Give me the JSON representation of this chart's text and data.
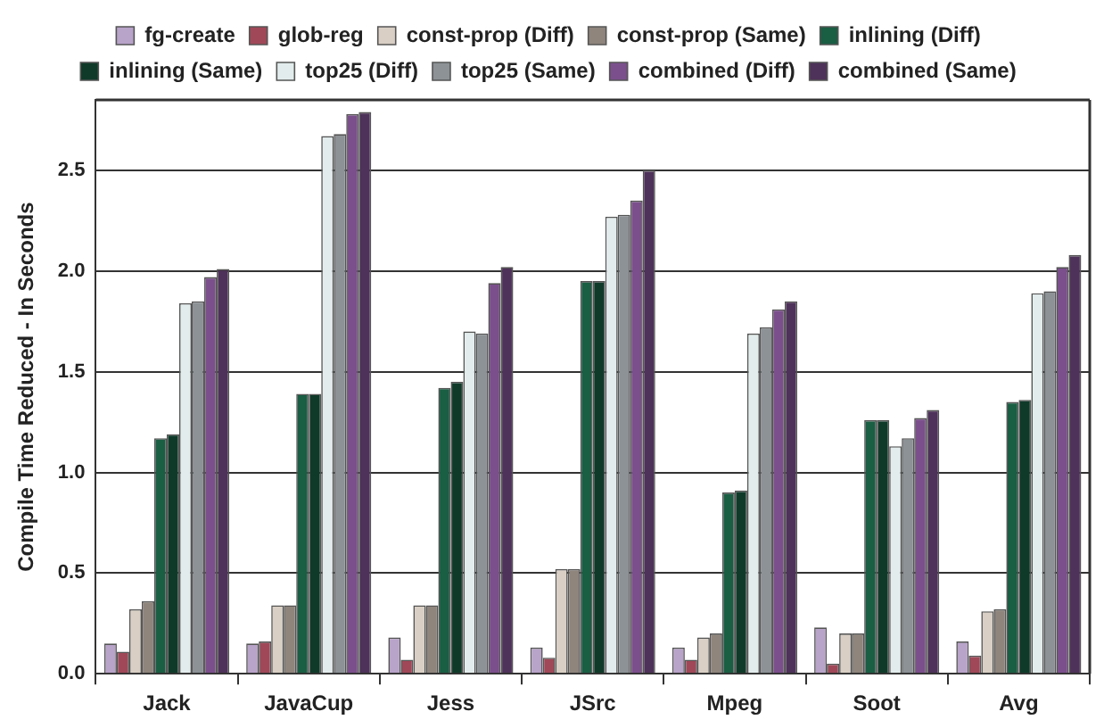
{
  "chart_data": {
    "type": "bar",
    "ylabel": "Compile Time Reduced - In Seconds",
    "categories": [
      "Jack",
      "JavaCup",
      "Jess",
      "JSrc",
      "Mpeg",
      "Soot",
      "Avg"
    ],
    "series": [
      {
        "name": "fg-create",
        "color": "#b8a3c9",
        "values": [
          0.15,
          0.15,
          0.18,
          0.13,
          0.13,
          0.23,
          0.16
        ]
      },
      {
        "name": "glob-reg",
        "color": "#a04858",
        "values": [
          0.11,
          0.16,
          0.07,
          0.08,
          0.07,
          0.05,
          0.09
        ]
      },
      {
        "name": "const-prop (Diff)",
        "color": "#d9cfc4",
        "values": [
          0.32,
          0.34,
          0.34,
          0.52,
          0.18,
          0.2,
          0.31
        ]
      },
      {
        "name": "const-prop (Same)",
        "color": "#8f857c",
        "values": [
          0.36,
          0.34,
          0.34,
          0.52,
          0.2,
          0.2,
          0.32
        ]
      },
      {
        "name": "inlining (Diff)",
        "color": "#1a5e44",
        "values": [
          1.17,
          1.39,
          1.42,
          1.95,
          0.9,
          1.26,
          1.35
        ]
      },
      {
        "name": "inlining (Same)",
        "color": "#0f3a2a",
        "values": [
          1.19,
          1.39,
          1.45,
          1.95,
          0.91,
          1.26,
          1.36
        ]
      },
      {
        "name": "top25 (Diff)",
        "color": "#e3ecec",
        "values": [
          1.84,
          2.67,
          1.7,
          2.27,
          1.69,
          1.13,
          1.89
        ]
      },
      {
        "name": "top25 (Same)",
        "color": "#8c9296",
        "values": [
          1.85,
          2.68,
          1.69,
          2.28,
          1.72,
          1.17,
          1.9
        ]
      },
      {
        "name": "combined (Diff)",
        "color": "#7b4f8c",
        "values": [
          1.97,
          2.78,
          1.94,
          2.35,
          1.81,
          1.27,
          2.02
        ]
      },
      {
        "name": "combined (Same)",
        "color": "#4e3259",
        "values": [
          2.01,
          2.79,
          2.02,
          2.5,
          1.85,
          1.31,
          2.08
        ]
      }
    ],
    "ylim": [
      0,
      2.85
    ],
    "yticks": [
      {
        "value": 0,
        "label": "0.0"
      },
      0.5,
      {
        "value": 1,
        "label": "1.0"
      },
      1.5,
      {
        "value": 2,
        "label": "2.0"
      },
      2.5
    ],
    "grid": "y",
    "legend": "top"
  }
}
